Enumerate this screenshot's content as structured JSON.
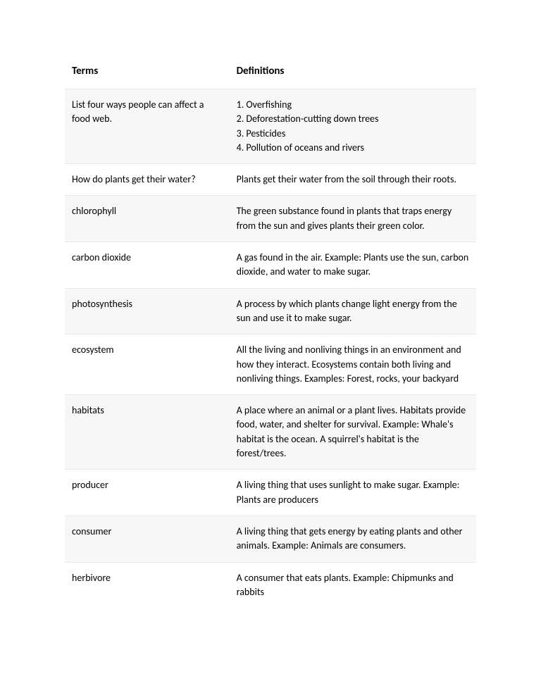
{
  "table": {
    "headers": {
      "term": "Terms",
      "definition": "Definitions"
    },
    "header_fontsize": 15,
    "cell_fontsize": 14,
    "text_color": "#000000",
    "stripe_color": "#f7f7f7",
    "border_color": "#e8e8e8",
    "background_color": "#ffffff",
    "col_widths": {
      "term": "40%",
      "definition": "60%"
    },
    "rows": [
      {
        "term": "List four ways people can affect a food web.",
        "definition_lines": [
          "1. Overfishing",
          "2. Deforestation-cutting down trees",
          "3. Pesticides",
          "4. Pollution of oceans and rivers"
        ],
        "striped": true
      },
      {
        "term": "How do plants get their water?",
        "definition": "Plants get their water from the soil through their roots.",
        "striped": false
      },
      {
        "term": "chlorophyll",
        "definition": "The green substance found in plants that traps energy from the sun and gives plants their green color.",
        "striped": true
      },
      {
        "term": "carbon dioxide",
        "definition": "A gas found in the air. Example: Plants use the sun, carbon dioxide, and water to make sugar.",
        "striped": false
      },
      {
        "term": "photosynthesis",
        "definition": "A process by which plants change light energy from the sun and use it to make sugar.",
        "striped": true
      },
      {
        "term": "ecosystem",
        "definition": "All the living and nonliving things in an environment and how they interact. Ecosystems contain both living and nonliving things. Examples: Forest, rocks, your backyard",
        "striped": false
      },
      {
        "term": "habitats",
        "definition": "A place where an animal or a plant lives. Habitats provide food, water, and shelter for survival. Example: Whale's habitat is the ocean. A squirrel's habitat is the forest/trees.",
        "striped": true
      },
      {
        "term": "producer",
        "definition": "A living thing that uses sunlight to make sugar. Example: Plants are producers",
        "striped": false
      },
      {
        "term": "consumer",
        "definition": "A living thing that gets energy by eating plants and other animals. Example: Animals are consumers.",
        "striped": true
      },
      {
        "term": "herbivore",
        "definition": "A consumer that eats plants. Example: Chipmunks and rabbits",
        "striped": false
      }
    ]
  }
}
